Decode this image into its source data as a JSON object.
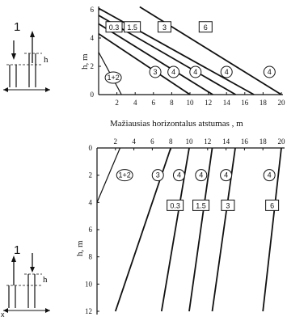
{
  "top_diagram": {
    "number": "1",
    "h_label": "h"
  },
  "bottom_diagram": {
    "number": "1",
    "h_label": "h",
    "extra_label": "x"
  },
  "chart_data": [
    {
      "type": "line",
      "title": "",
      "xlabel": "Mažiausias horizontalus atstumas , m",
      "ylabel": "h, m",
      "xlim": [
        0,
        20
      ],
      "ylim": [
        0,
        6
      ],
      "x_ticks": [
        "2",
        "4",
        "6",
        "8",
        "10",
        "12",
        "14",
        "16",
        "18",
        "20"
      ],
      "y_ticks": [
        "0",
        "2",
        "4",
        "6"
      ],
      "series": [
        {
          "name": "1+2",
          "points": [
            [
              0,
              3.0
            ],
            [
              2.5,
              0
            ]
          ]
        },
        {
          "name": "3",
          "points": [
            [
              0,
              4.3
            ],
            [
              10.0,
              0
            ]
          ]
        },
        {
          "name": "4",
          "points": [
            [
              0,
              5.0
            ],
            [
              12.5,
              0
            ]
          ]
        },
        {
          "name": "4",
          "points": [
            [
              0,
              5.6
            ],
            [
              15.0,
              0
            ]
          ]
        },
        {
          "name": "4",
          "points": [
            [
              0,
              6.1
            ],
            [
              17.0,
              0
            ]
          ]
        },
        {
          "name": "4",
          "points": [
            [
              4.5,
              6.2
            ],
            [
              20.0,
              0
            ]
          ]
        }
      ],
      "circle_labels": [
        "1+2",
        "3",
        "4",
        "4",
        "4",
        "4"
      ],
      "box_labels": [
        "0.3",
        "1.5",
        "3",
        "6"
      ]
    },
    {
      "type": "line",
      "title": "",
      "xlabel": "",
      "ylabel": "h, m",
      "xlim": [
        0,
        20
      ],
      "ylim": [
        12,
        0
      ],
      "x_ticks": [
        "0",
        "2",
        "4",
        "6",
        "8",
        "10",
        "12",
        "14",
        "16",
        "18",
        "20"
      ],
      "y_ticks": [
        "0",
        "2",
        "4",
        "6",
        "8",
        "10",
        "12"
      ],
      "series": [
        {
          "name": "1+2",
          "points": [
            [
              2.5,
              0
            ],
            [
              0,
              4.0
            ]
          ]
        },
        {
          "name": "3",
          "points": [
            [
              8.0,
              0
            ],
            [
              2.0,
              12.0
            ]
          ]
        },
        {
          "name": "4",
          "points": [
            [
              10.0,
              0
            ],
            [
              7.0,
              12.0
            ]
          ]
        },
        {
          "name": "4",
          "points": [
            [
              12.5,
              0
            ],
            [
              10.0,
              12.0
            ]
          ]
        },
        {
          "name": "4",
          "points": [
            [
              15.0,
              0
            ],
            [
              12.5,
              12.0
            ]
          ]
        },
        {
          "name": "4",
          "points": [
            [
              20.0,
              0
            ],
            [
              18.0,
              12.0
            ]
          ]
        }
      ],
      "circle_labels": [
        "1+2",
        "3",
        "4",
        "4",
        "4",
        "4"
      ],
      "box_labels": [
        "0.3",
        "1.5",
        "3",
        "6"
      ]
    }
  ]
}
